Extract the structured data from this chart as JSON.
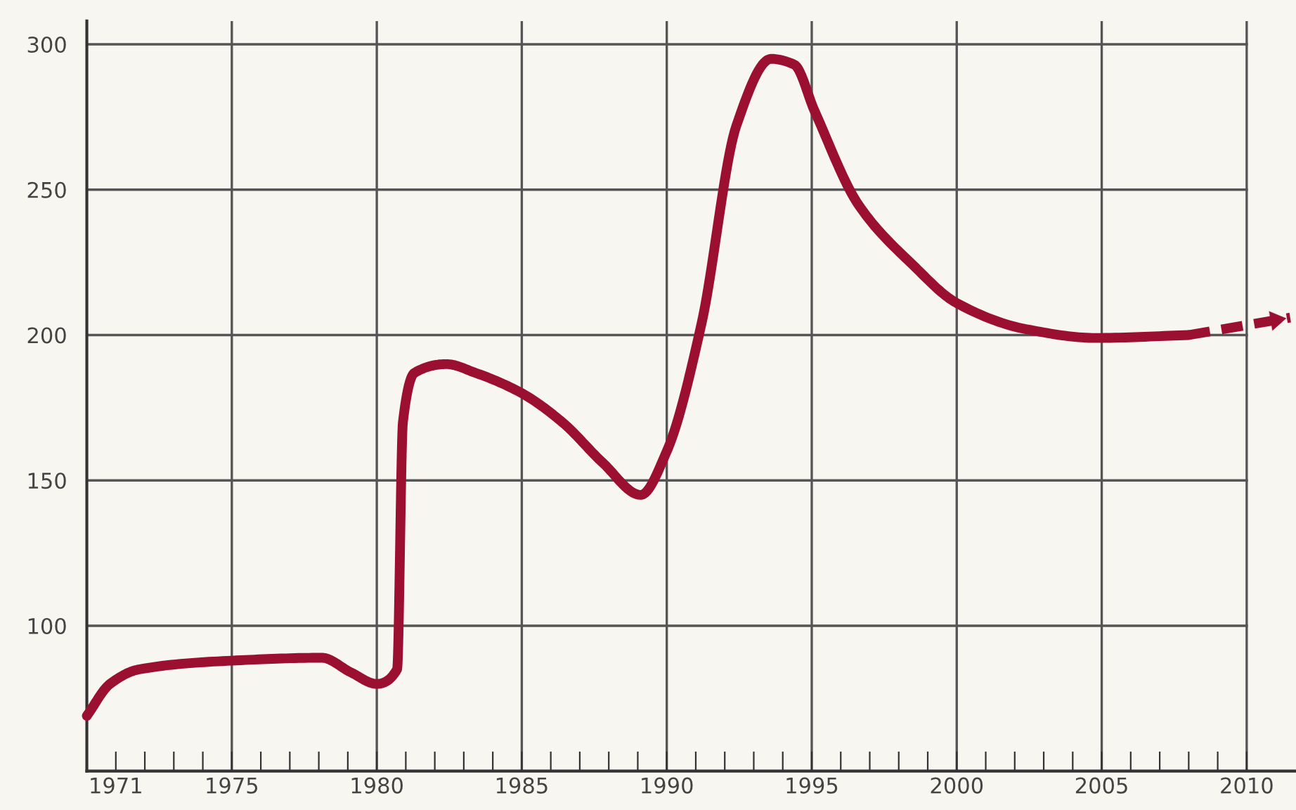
{
  "chart_data": {
    "type": "line",
    "xlim": [
      1970,
      2011.7
    ],
    "ylim": [
      50,
      308
    ],
    "xticks": [
      {
        "value": 1970,
        "label": null
      },
      1971,
      {
        "value": 1972,
        "label": null
      },
      {
        "value": 1973,
        "label": null
      },
      {
        "value": 1974,
        "label": null
      },
      1975,
      {
        "value": 1976,
        "label": null
      },
      {
        "value": 1977,
        "label": null
      },
      {
        "value": 1978,
        "label": null
      },
      {
        "value": 1979,
        "label": null
      },
      1980,
      {
        "value": 1981,
        "label": null
      },
      {
        "value": 1982,
        "label": null
      },
      {
        "value": 1983,
        "label": null
      },
      {
        "value": 1984,
        "label": null
      },
      1985,
      {
        "value": 1986,
        "label": null
      },
      {
        "value": 1987,
        "label": null
      },
      {
        "value": 1988,
        "label": null
      },
      {
        "value": 1989,
        "label": null
      },
      1990,
      {
        "value": 1991,
        "label": null
      },
      {
        "value": 1992,
        "label": null
      },
      {
        "value": 1993,
        "label": null
      },
      {
        "value": 1994,
        "label": null
      },
      1995,
      {
        "value": 1996,
        "label": null
      },
      {
        "value": 1997,
        "label": null
      },
      {
        "value": 1998,
        "label": null
      },
      {
        "value": 1999,
        "label": null
      },
      2000,
      {
        "value": 2001,
        "label": null
      },
      {
        "value": 2002,
        "label": null
      },
      {
        "value": 2003,
        "label": null
      },
      {
        "value": 2004,
        "label": null
      },
      2005,
      {
        "value": 2006,
        "label": null
      },
      {
        "value": 2007,
        "label": null
      },
      {
        "value": 2008,
        "label": null
      },
      {
        "value": 2009,
        "label": null
      },
      2010
    ],
    "yticks": [
      100,
      150,
      200,
      250,
      300
    ],
    "grid": true,
    "marker": "none",
    "series": [
      {
        "color": "#9b1030",
        "line_style": "solid",
        "x": [
          1970,
          1970.8,
          1971.8,
          1975,
          1978.1,
          1979.1,
          1980,
          1980.7,
          1980.9,
          1981.3,
          1982.4,
          1983.4,
          1985,
          1986.4,
          1987.8,
          1989.1,
          1990,
          1991.2,
          1992.4,
          1993.6,
          1994.4,
          1995.1,
          1996.6,
          1998.5,
          2000,
          2002.4,
          2004.8,
          2008
        ],
        "values": [
          69,
          80,
          85,
          88,
          89,
          84,
          80,
          85,
          170,
          187,
          190,
          187,
          180,
          170,
          156,
          145,
          160,
          204,
          272,
          295,
          293,
          277,
          245,
          224,
          211,
          202,
          199,
          200
        ]
      },
      {
        "color": "#9b1030",
        "line_style": "dashed",
        "x": [
          2008,
          2011.5
        ],
        "values": [
          200,
          206
        ]
      }
    ]
  }
}
